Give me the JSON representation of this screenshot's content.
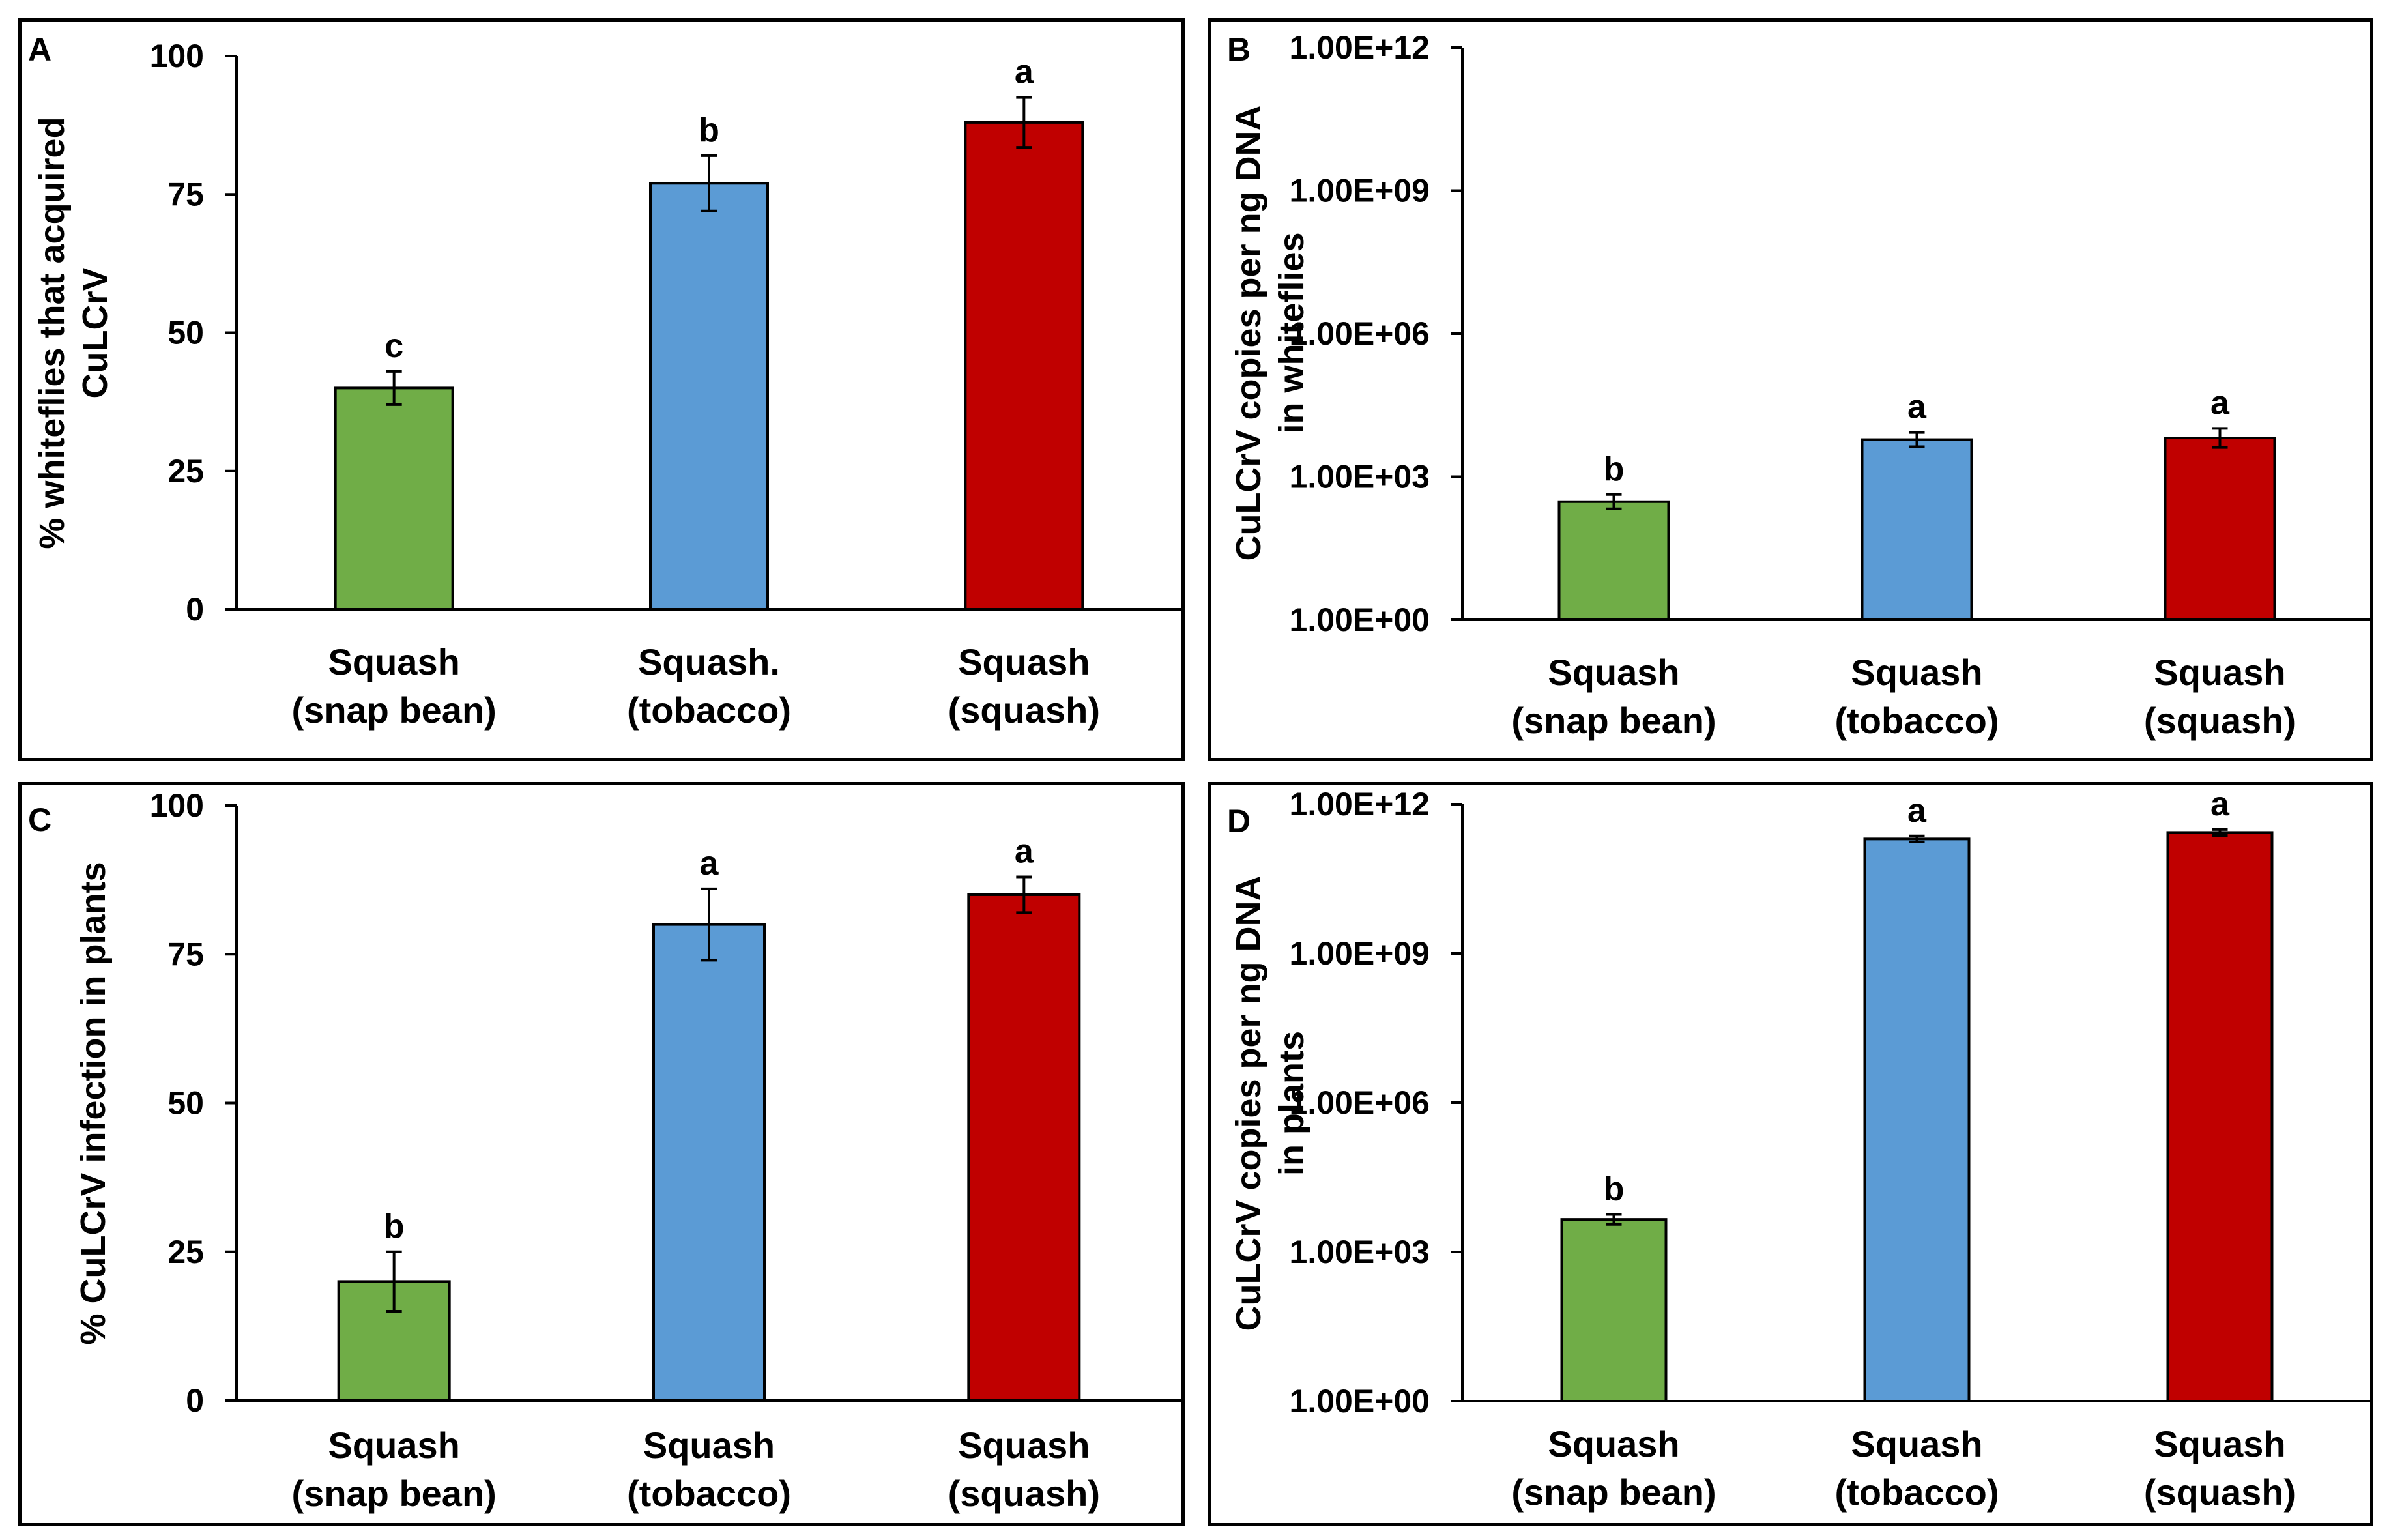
{
  "chart_data": [
    {
      "panel": "A",
      "type": "bar",
      "scale": "linear",
      "ylabel_lines": [
        "% whiteflies that acquired",
        "CuLCrV"
      ],
      "ylim": [
        0,
        100
      ],
      "yticks": [
        0,
        25,
        50,
        75,
        100
      ],
      "ytick_labels": [
        "0",
        "25",
        "50",
        "75",
        "100"
      ],
      "categories": [
        [
          "Squash",
          "(snap bean)"
        ],
        [
          "Squash.",
          "(tobacco)"
        ],
        [
          "Squash",
          "(squash)"
        ]
      ],
      "values": [
        40,
        77,
        88
      ],
      "errors": [
        3,
        5,
        4.5
      ],
      "letters": [
        "c",
        "b",
        "a"
      ],
      "colors": [
        "#70ad47",
        "#5b9bd5",
        "#c00000"
      ]
    },
    {
      "panel": "B",
      "type": "bar",
      "scale": "log10",
      "ylabel_lines": [
        "CuLCrV copies per ng DNA",
        "in whiteflies"
      ],
      "ylim_exp": [
        0,
        12
      ],
      "yticks_exp": [
        0,
        3,
        6,
        9,
        12
      ],
      "ytick_labels": [
        "1.00E+00",
        "1.00E+03",
        "1.00E+06",
        "1.00E+09",
        "1.00E+12"
      ],
      "categories": [
        [
          "Squash",
          "(snap bean)"
        ],
        [
          "Squash",
          "(tobacco)"
        ],
        [
          "Squash",
          "(squash)"
        ]
      ],
      "values": [
        300,
        6000,
        6500
      ],
      "error_log": [
        0.15,
        0.15,
        0.2
      ],
      "letters": [
        "b",
        "a",
        "a"
      ],
      "colors": [
        "#70ad47",
        "#5b9bd5",
        "#c00000"
      ]
    },
    {
      "panel": "C",
      "type": "bar",
      "scale": "linear",
      "ylabel_lines": [
        "% CuLCrV infection in plants"
      ],
      "ylim": [
        0,
        100
      ],
      "yticks": [
        0,
        25,
        50,
        75,
        100
      ],
      "ytick_labels": [
        "0",
        "25",
        "50",
        "75",
        "100"
      ],
      "categories": [
        [
          "Squash",
          "(snap bean)"
        ],
        [
          "Squash",
          "(tobacco)"
        ],
        [
          "Squash",
          "(squash)"
        ]
      ],
      "values": [
        20,
        80,
        85
      ],
      "errors": [
        5,
        6,
        3
      ],
      "letters": [
        "b",
        "a",
        "a"
      ],
      "colors": [
        "#70ad47",
        "#5b9bd5",
        "#c00000"
      ]
    },
    {
      "panel": "D",
      "type": "bar",
      "scale": "log10",
      "ylabel_lines": [
        "CuLCrV copies  per ng DNA",
        "in plants"
      ],
      "ylim_exp": [
        0,
        12
      ],
      "yticks_exp": [
        0,
        3,
        6,
        9,
        12
      ],
      "ytick_labels": [
        "1.00E+00",
        "1.00E+03",
        "1.00E+06",
        "1.00E+09",
        "1.00E+12"
      ],
      "categories": [
        [
          "Squash",
          "(snap bean)"
        ],
        [
          "Squash",
          "(tobacco)"
        ],
        [
          "Squash",
          "(squash)"
        ]
      ],
      "values": [
        4500,
        200000000000,
        270000000000
      ],
      "error_log": [
        0.1,
        0.06,
        0.06
      ],
      "letters": [
        "b",
        "a",
        "a"
      ],
      "colors": [
        "#70ad47",
        "#5b9bd5",
        "#c00000"
      ]
    }
  ]
}
